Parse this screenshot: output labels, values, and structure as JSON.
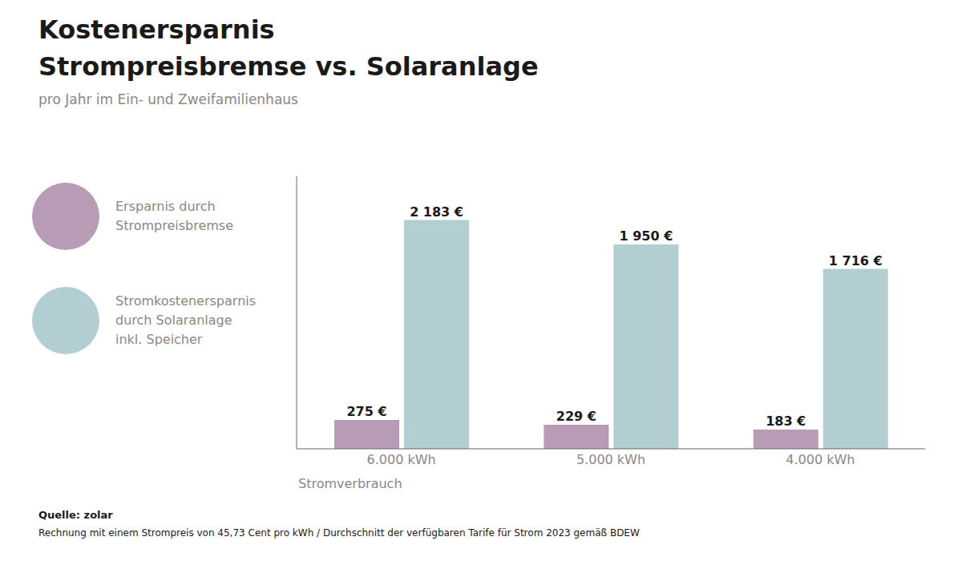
{
  "chart_data": {
    "type": "bar",
    "title": "Kostenersparnis\nStrompreisbremse vs. Solaranlage",
    "subtitle": "pro Jahr im Ein- und Zweifamilienhaus",
    "xlabel": "Stromverbrauch",
    "categories": [
      "6.000 kWh",
      "5.000 kWh",
      "4.000 kWh"
    ],
    "series": [
      {
        "name": "Ersparnis durch\nStrompreisbremse",
        "color": "#b89bb5",
        "values": [
          275,
          229,
          183
        ],
        "value_labels": [
          "275 €",
          "229 €",
          "183 €"
        ]
      },
      {
        "name": "Stromkostenersparnis\ndurch Solaranlage\ninkl. Speicher",
        "color": "#b3ced2",
        "values": [
          2183,
          1950,
          1716
        ],
        "value_labels": [
          "2 183 €",
          "1 950 €",
          "1 716 €"
        ]
      }
    ],
    "ylim": [
      0,
      2600
    ],
    "yticks": [],
    "grid": false,
    "data_labels": true,
    "tick_labels": "x",
    "annotations": [
      "Quelle: zolar",
      "Rechnung mit einem Strompreis von 45,73 Cent pro kWh / Durchschnitt der verfügbaren Tarife für Strom 2023 gemäß BDEW"
    ]
  }
}
